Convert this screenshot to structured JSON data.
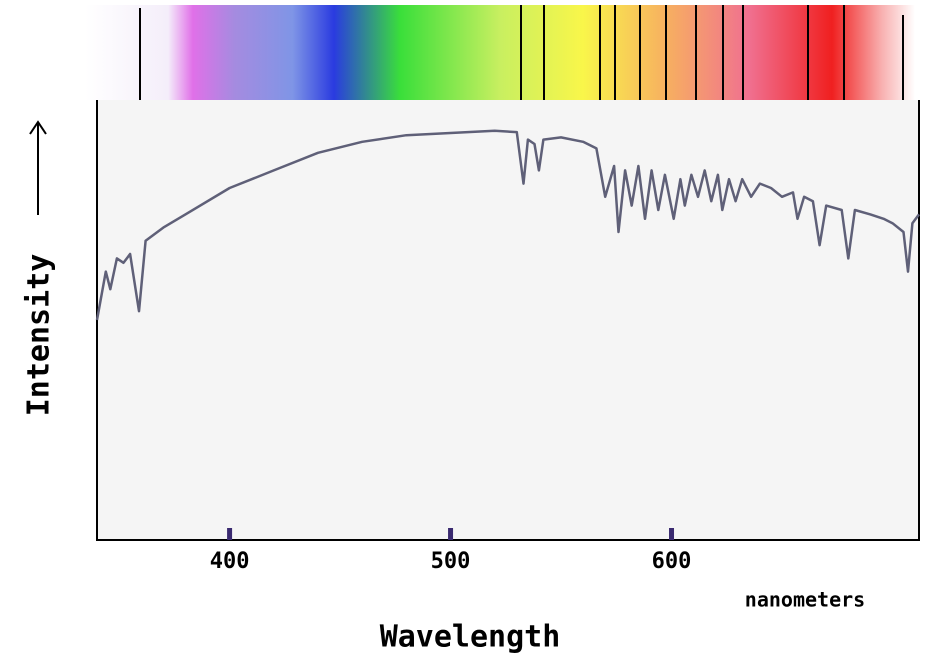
{
  "chart_data": {
    "type": "line",
    "x_label": "Wavelength",
    "y_label": "Intensity",
    "x_unit": "nanometers",
    "x": [
      340,
      344,
      346,
      349,
      352,
      355,
      359,
      362,
      370,
      380,
      400,
      420,
      440,
      460,
      480,
      500,
      520,
      530,
      533,
      535,
      538,
      540,
      542,
      550,
      560,
      566,
      570,
      574,
      576,
      579,
      582,
      585,
      588,
      591,
      594,
      597,
      601,
      604,
      606,
      609,
      612,
      615,
      618,
      621,
      623,
      626,
      629,
      632,
      636,
      640,
      645,
      650,
      655,
      657,
      660,
      664,
      667,
      670,
      677,
      680,
      683,
      690,
      696,
      700,
      705,
      707,
      709,
      712
    ],
    "values": [
      50,
      61,
      57,
      64,
      63,
      65,
      52,
      68,
      71,
      74,
      80,
      84,
      88,
      90.5,
      92,
      92.5,
      93,
      92.7,
      81,
      91,
      90,
      84,
      91,
      91.5,
      90.5,
      89,
      78,
      85,
      70,
      84,
      76,
      85,
      73,
      84,
      75,
      83,
      73,
      82,
      76,
      83,
      78,
      84,
      77,
      83,
      75,
      82,
      77,
      82,
      78,
      81,
      80,
      78,
      79,
      73,
      78,
      77,
      67,
      76,
      75,
      64,
      75,
      74,
      73,
      72,
      70,
      61,
      72,
      74
    ],
    "color": "#5f6078",
    "xlim": [
      340,
      712
    ],
    "xticks": [
      400,
      500,
      600
    ],
    "ylim": [
      0,
      100
    ]
  }
}
